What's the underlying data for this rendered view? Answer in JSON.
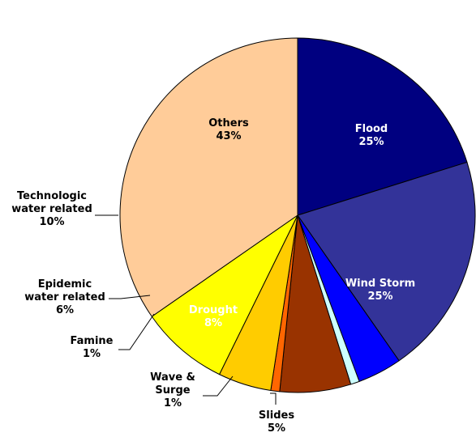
{
  "chart_data": {
    "type": "pie",
    "title": "",
    "start_angle_deg": 0,
    "direction": "clockwise",
    "slices": [
      {
        "name": "Flood",
        "value": 25,
        "label_lines": [
          "Flood",
          "25%"
        ],
        "color": "#000080",
        "label_color": "#ffffff",
        "label_position": "inside"
      },
      {
        "name": "Wind Storm",
        "value": 25,
        "label_lines": [
          "Wind Storm",
          "25%"
        ],
        "color": "#333399",
        "label_color": "#ffffff",
        "label_position": "inside"
      },
      {
        "name": "Slides",
        "value": 5,
        "label_lines": [
          "Slides",
          "5%"
        ],
        "color": "#0000ff",
        "label_color": "#000000",
        "label_position": "outside"
      },
      {
        "name": "Wave & Surge",
        "value": 1,
        "label_lines": [
          "Wave &",
          "Surge",
          "1%"
        ],
        "color": "#ccffff",
        "label_color": "#000000",
        "label_position": "outside"
      },
      {
        "name": "Drought",
        "value": 8,
        "label_lines": [
          "Drought",
          "8%"
        ],
        "color": "#993300",
        "label_color": "#ffffff",
        "label_position": "inside"
      },
      {
        "name": "Famine",
        "value": 1,
        "label_lines": [
          "Famine",
          "1%"
        ],
        "color": "#ff6600",
        "label_color": "#000000",
        "label_position": "outside"
      },
      {
        "name": "Epidemic water related",
        "value": 6,
        "label_lines": [
          "Epidemic",
          "water related",
          "6%"
        ],
        "color": "#ffcc00",
        "label_color": "#000000",
        "label_position": "outside"
      },
      {
        "name": "Technologic water related",
        "value": 10,
        "label_lines": [
          "Technologic",
          "water related",
          "10%"
        ],
        "color": "#ffff00",
        "label_color": "#000000",
        "label_position": "outside"
      },
      {
        "name": "Others",
        "value": 43,
        "label_lines": [
          "Others",
          "43%"
        ],
        "color": "#ffcc99",
        "label_color": "#000000",
        "label_position": "inside"
      }
    ]
  }
}
